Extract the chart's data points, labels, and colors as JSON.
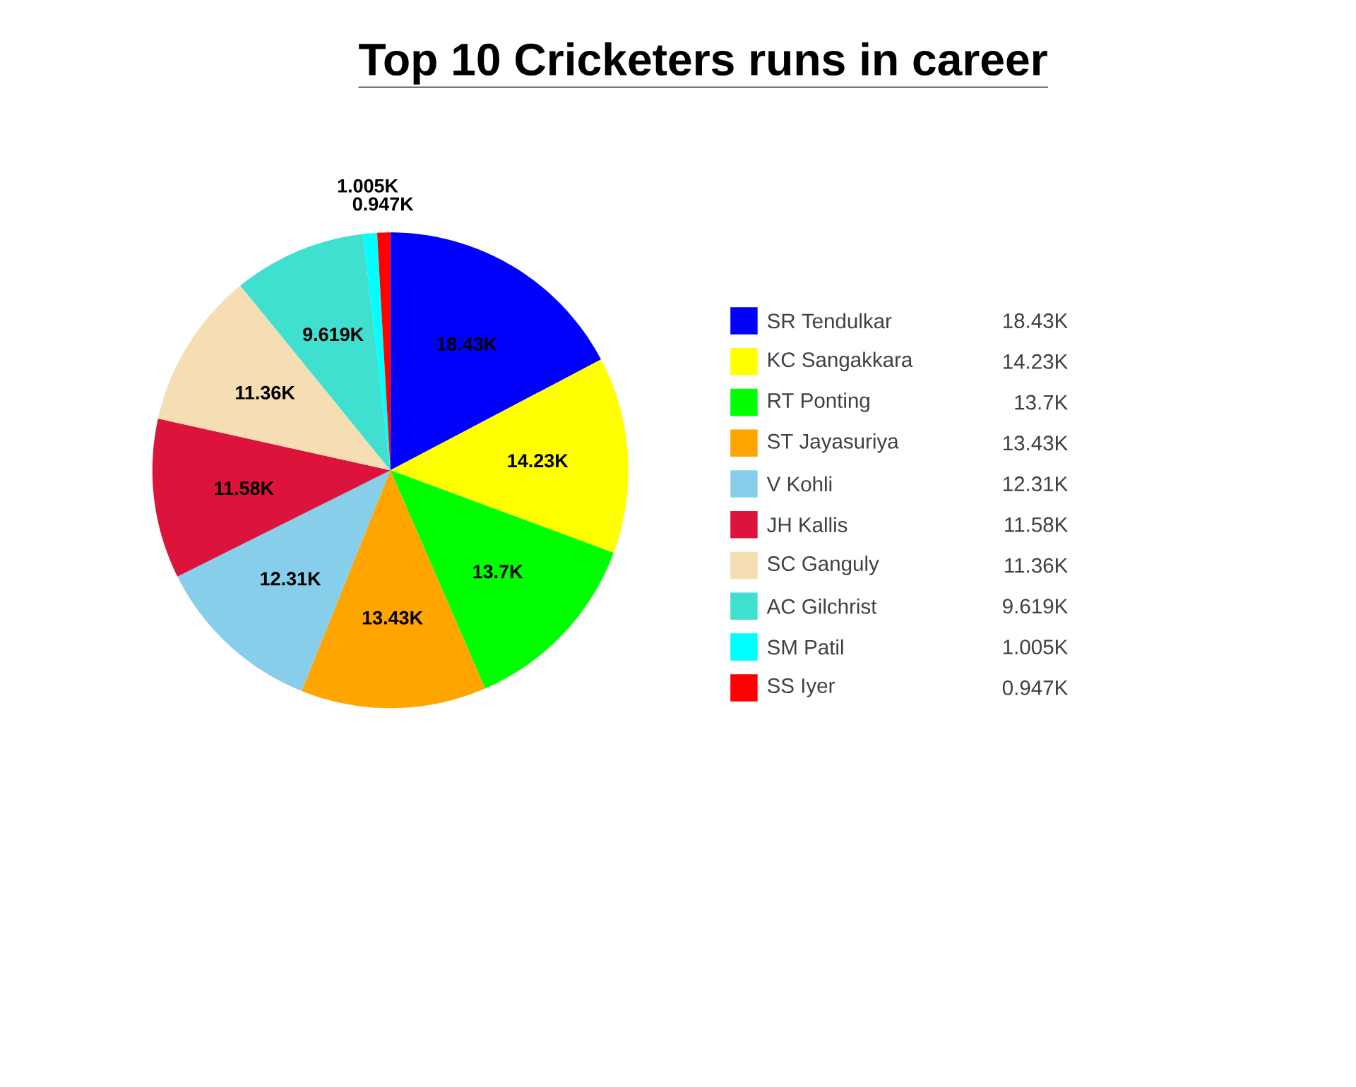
{
  "chart_data": {
    "type": "pie",
    "title": "Top 10 Cricketers runs in career",
    "categories": [
      "SR Tendulkar",
      "KC Sangakkara",
      "RT Ponting",
      "ST Jayasuriya",
      "V Kohli",
      "JH Kallis",
      "SC Ganguly",
      "AC Gilchrist",
      "SM Patil",
      "SS Iyer"
    ],
    "values": [
      18.43,
      14.23,
      13.7,
      13.43,
      12.31,
      11.58,
      11.36,
      9.619,
      1.005,
      0.947
    ],
    "value_labels": [
      "18.43K",
      "14.23K",
      "13.7K",
      "13.43K",
      "12.31K",
      "11.58K",
      "11.36K",
      "9.619K",
      "1.005K",
      "0.947K"
    ],
    "colors": [
      "#0000ff",
      "#ffff00",
      "#00ff00",
      "#ffa500",
      "#87ceeb",
      "#dc143c",
      "#f5deb3",
      "#40e0d0",
      "#00ffff",
      "#ff0000"
    ],
    "legend": "right"
  }
}
